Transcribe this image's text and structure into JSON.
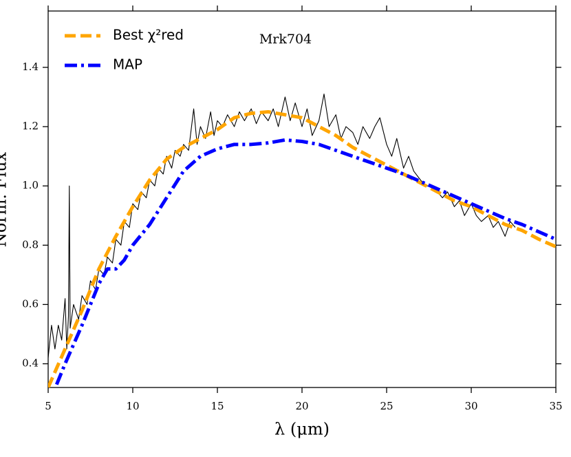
{
  "chart_data": {
    "type": "line",
    "annotation": "Mrk704",
    "xlabel": "λ (μm)",
    "ylabel": "Norm. Flux",
    "xlim": [
      5,
      35
    ],
    "xticks": [
      5,
      10,
      15,
      20,
      25,
      30,
      35
    ],
    "ylim": [
      0.32,
      1.59
    ],
    "yticks": [
      0.4,
      0.6,
      0.8,
      1.0,
      1.2,
      1.4
    ],
    "legend": "upper left",
    "series": [
      {
        "color": "#000000",
        "x": [
          5.0,
          5.2,
          5.4,
          5.6,
          5.8,
          6.0,
          6.1,
          6.2,
          6.25,
          6.3,
          6.5,
          6.8,
          7.0,
          7.3,
          7.5,
          7.8,
          8.0,
          8.3,
          8.5,
          8.8,
          9.0,
          9.3,
          9.5,
          9.8,
          10.0,
          10.3,
          10.5,
          10.8,
          11.0,
          11.3,
          11.5,
          11.8,
          12.0,
          12.3,
          12.5,
          12.8,
          13.0,
          13.3,
          13.6,
          13.8,
          14.0,
          14.3,
          14.6,
          14.8,
          15.0,
          15.3,
          15.6,
          16.0,
          16.3,
          16.6,
          17.0,
          17.3,
          17.6,
          18.0,
          18.3,
          18.6,
          19.0,
          19.3,
          19.6,
          20.0,
          20.3,
          20.6,
          21.0,
          21.3,
          21.6,
          22.0,
          22.3,
          22.6,
          23.0,
          23.3,
          23.6,
          24.0,
          24.3,
          24.6,
          25.0,
          25.3,
          25.6,
          26.0,
          26.3,
          26.6,
          27.0,
          27.3,
          27.6,
          28.0,
          28.3,
          28.6,
          29.0,
          29.3,
          29.6,
          30.0,
          30.3,
          30.6,
          31.0,
          31.3,
          31.6,
          32.0,
          32.3,
          32.6
        ],
        "values": [
          0.42,
          0.53,
          0.45,
          0.53,
          0.48,
          0.62,
          0.45,
          0.56,
          1.0,
          0.52,
          0.6,
          0.55,
          0.63,
          0.6,
          0.68,
          0.65,
          0.72,
          0.7,
          0.76,
          0.74,
          0.82,
          0.8,
          0.88,
          0.86,
          0.94,
          0.92,
          0.98,
          0.96,
          1.02,
          1.0,
          1.06,
          1.04,
          1.1,
          1.06,
          1.12,
          1.1,
          1.14,
          1.12,
          1.26,
          1.14,
          1.2,
          1.16,
          1.25,
          1.17,
          1.22,
          1.2,
          1.24,
          1.2,
          1.25,
          1.22,
          1.26,
          1.21,
          1.25,
          1.22,
          1.26,
          1.2,
          1.3,
          1.22,
          1.28,
          1.2,
          1.26,
          1.17,
          1.22,
          1.31,
          1.2,
          1.24,
          1.16,
          1.2,
          1.18,
          1.14,
          1.2,
          1.16,
          1.2,
          1.23,
          1.14,
          1.1,
          1.16,
          1.06,
          1.1,
          1.05,
          1.02,
          1.0,
          1.0,
          0.98,
          0.96,
          0.98,
          0.93,
          0.95,
          0.9,
          0.94,
          0.9,
          0.88,
          0.9,
          0.86,
          0.88,
          0.83,
          0.88,
          0.86
        ]
      },
      {
        "name": "Best χ²red",
        "color": "#ffa500",
        "x": [
          5,
          6,
          7,
          8,
          9,
          10,
          11,
          12,
          13,
          14,
          15,
          16,
          17,
          18,
          19,
          20,
          21,
          22,
          23,
          24,
          25,
          26,
          27,
          28,
          29,
          30,
          31,
          32,
          33,
          34,
          35
        ],
        "values": [
          0.32,
          0.45,
          0.58,
          0.72,
          0.83,
          0.93,
          1.02,
          1.09,
          1.13,
          1.16,
          1.19,
          1.23,
          1.245,
          1.25,
          1.24,
          1.23,
          1.2,
          1.17,
          1.13,
          1.1,
          1.07,
          1.04,
          1.01,
          0.98,
          0.95,
          0.93,
          0.9,
          0.87,
          0.85,
          0.82,
          0.795
        ]
      },
      {
        "name": "MAP",
        "color": "#0000ff",
        "x": [
          5.5,
          6,
          7,
          8,
          8.5,
          9,
          9.5,
          10,
          11,
          12,
          13,
          14,
          15,
          16,
          17,
          18,
          19,
          20,
          21,
          22,
          23,
          24,
          25,
          26,
          27,
          28,
          29,
          30,
          31,
          32,
          33,
          34,
          35
        ],
        "values": [
          0.33,
          0.4,
          0.53,
          0.67,
          0.72,
          0.72,
          0.75,
          0.8,
          0.87,
          0.96,
          1.05,
          1.1,
          1.125,
          1.14,
          1.14,
          1.145,
          1.155,
          1.15,
          1.14,
          1.12,
          1.1,
          1.08,
          1.06,
          1.04,
          1.015,
          0.99,
          0.965,
          0.94,
          0.915,
          0.89,
          0.87,
          0.845,
          0.82
        ]
      }
    ]
  }
}
